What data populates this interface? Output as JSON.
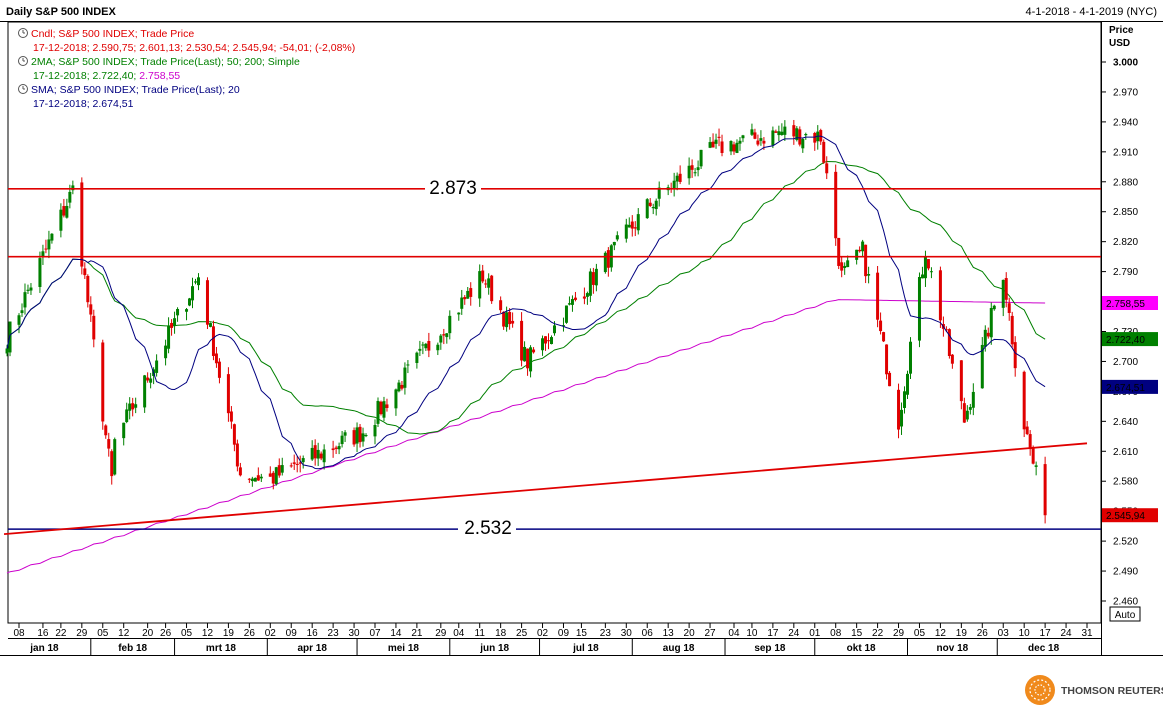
{
  "header": {
    "title": "Daily S&P 500 INDEX",
    "date_range": "4-1-2018 - 4-1-2019 (NYC)",
    "price_label_1": "Price",
    "price_label_2": "USD"
  },
  "legend": [
    {
      "line1": "Cndl; S&P 500 INDEX; Trade Price",
      "line2": "17-12-2018; 2.590,75; 2.601,13; 2.530,54; 2.545,94; -54,01; (-2,08%)",
      "color": "#e00000"
    },
    {
      "line1": "2MA; S&P 500 INDEX; Trade Price(Last);  50; 200; Simple",
      "line2_a": "17-12-2018; 2.722,40; ",
      "line2_b": "2.758,55",
      "color": "#008000",
      "color_b": "#cc00cc"
    },
    {
      "line1": "SMA; S&P 500 INDEX; Trade Price(Last);  20",
      "line2": "17-12-2018; 2.674,51",
      "color": "#000080"
    }
  ],
  "annotations": {
    "resistance_label": "2.873",
    "support_label": "2.532"
  },
  "value_tags": [
    {
      "text": "2.758,55",
      "price": 2758.55,
      "bg": "#ff00ff",
      "fg": "#000000"
    },
    {
      "text": "2.722,40",
      "price": 2722.4,
      "bg": "#008000",
      "fg": "#ffffff"
    },
    {
      "text": "2.674,51",
      "price": 2674.51,
      "bg": "#000080",
      "fg": "#ffffff"
    },
    {
      "text": "2.545,94",
      "price": 2545.94,
      "bg": "#e00000",
      "fg": "#000000"
    }
  ],
  "auto_label": "Auto",
  "branding": "THOMSON REUTERS",
  "colors": {
    "up": "#008000",
    "down": "#e00000",
    "sma20": "#000080",
    "ma50": "#008000",
    "ma200": "#cc00cc",
    "hline_red": "#e00000",
    "hline_blue": "#000080"
  },
  "chart_data": {
    "type": "candlestick",
    "title": "Daily S&P 500 INDEX",
    "ylabel": "Price USD",
    "ylim": [
      2440,
      3020
    ],
    "y_ticks": [
      "3.000",
      "2.970",
      "2.940",
      "2.910",
      "2.880",
      "2.850",
      "2.820",
      "2.790",
      "2.730",
      "2.700",
      "2.670",
      "2.640",
      "2.610",
      "2.580",
      "2.550",
      "2.520",
      "2.490",
      "2.460"
    ],
    "y_tick_values": [
      3000,
      2970,
      2940,
      2910,
      2880,
      2850,
      2820,
      2790,
      2730,
      2700,
      2670,
      2640,
      2610,
      2580,
      2550,
      2520,
      2490,
      2460
    ],
    "x_day_ticks": [
      "08",
      "16",
      "22",
      "29",
      "05",
      "12",
      "20",
      "26",
      "05",
      "12",
      "19",
      "26",
      "02",
      "09",
      "16",
      "23",
      "30",
      "07",
      "14",
      "21",
      "29",
      "04",
      "11",
      "18",
      "25",
      "02",
      "09",
      "15",
      "23",
      "30",
      "06",
      "13",
      "20",
      "27",
      "04",
      "10",
      "17",
      "24",
      "01",
      "08",
      "15",
      "22",
      "29",
      "05",
      "12",
      "19",
      "26",
      "03",
      "10",
      "17",
      "24",
      "31"
    ],
    "x_months": [
      "jan 18",
      "feb 18",
      "mrt 18",
      "apr 18",
      "mei 18",
      "jun 18",
      "jul 18",
      "aug 18",
      "sep 18",
      "okt 18",
      "nov 18",
      "dec 18"
    ],
    "horizontal_lines": [
      {
        "label": "2.873",
        "value": 2873,
        "color": "red"
      },
      {
        "value": 2805,
        "color": "red"
      },
      {
        "label": "2.532",
        "value": 2532,
        "color": "navy"
      }
    ],
    "trendline": {
      "from": [
        "2018-01-03",
        2527
      ],
      "to": [
        "2018-12-31",
        2618
      ],
      "color": "red"
    },
    "ohlc_keypoints": [
      [
        "2018-01-04",
        2724
      ],
      [
        "2018-01-26",
        2872
      ],
      [
        "2018-02-08",
        2581
      ],
      [
        "2018-02-09",
        2619
      ],
      [
        "2018-03-09",
        2786
      ],
      [
        "2018-03-23",
        2588
      ],
      [
        "2018-04-02",
        2582
      ],
      [
        "2018-05-03",
        2630
      ],
      [
        "2018-06-12",
        2786
      ],
      [
        "2018-06-27",
        2700
      ],
      [
        "2018-08-07",
        2858
      ],
      [
        "2018-08-29",
        2914
      ],
      [
        "2018-09-20",
        2930
      ],
      [
        "2018-10-03",
        2925
      ],
      [
        "2018-10-10",
        2785
      ],
      [
        "2018-10-17",
        2810
      ],
      [
        "2018-10-29",
        2641
      ],
      [
        "2018-11-07",
        2813
      ],
      [
        "2018-11-20",
        2641
      ],
      [
        "2018-12-03",
        2790
      ],
      [
        "2018-12-10",
        2637
      ],
      [
        "2018-12-17",
        2546
      ]
    ],
    "sma20_last": 2674.51,
    "ma50_last": 2722.4,
    "ma200_last": 2758.55
  }
}
